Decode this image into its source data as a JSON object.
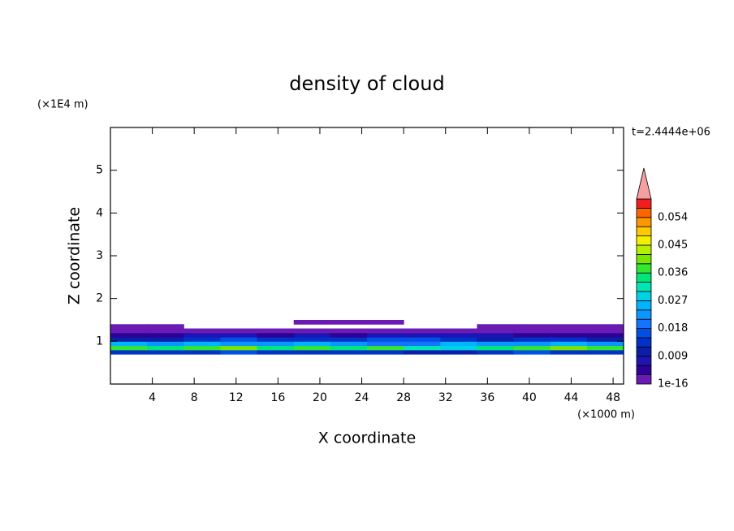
{
  "chart_data": {
    "type": "contour",
    "title": "density of cloud",
    "xlabel": "X coordinate",
    "x_unit": "(×1000 m)",
    "ylabel": "Z coordinate",
    "y_unit": "(×1E4 m)",
    "time_label": "t=2.4444e+06",
    "xlim": [
      0,
      49
    ],
    "xticks": [
      4,
      8,
      12,
      16,
      20,
      24,
      28,
      32,
      36,
      40,
      44,
      48
    ],
    "ylim": [
      0,
      6
    ],
    "yticks": [
      1,
      2,
      3,
      4,
      5
    ],
    "x_edges": [
      0,
      3.5,
      7,
      10.5,
      14,
      17.5,
      21,
      24.5,
      28,
      31.5,
      35,
      38.5,
      42,
      45.5,
      49
    ],
    "z_edges": [
      0.7,
      0.8,
      0.9,
      1.0,
      1.1,
      1.2,
      1.3,
      1.4,
      1.5
    ],
    "values": [
      [
        0.012,
        0.014,
        0.013,
        0.015,
        0.012,
        0.014,
        0.013,
        0.012,
        0.011,
        0.01,
        0.013,
        0.015,
        0.014,
        0.013
      ],
      [
        0.036,
        0.034,
        0.038,
        0.04,
        0.035,
        0.037,
        0.033,
        0.036,
        0.03,
        0.028,
        0.034,
        0.038,
        0.04,
        0.037
      ],
      [
        0.024,
        0.022,
        0.026,
        0.023,
        0.021,
        0.024,
        0.022,
        0.02,
        0.018,
        0.026,
        0.021,
        0.023,
        0.025,
        0.022
      ],
      [
        0.01,
        0.011,
        0.014,
        0.015,
        0.013,
        0.012,
        0.014,
        0.016,
        0.015,
        0.012,
        0.011,
        0.013,
        0.012,
        0.01
      ],
      [
        0.005,
        0.004,
        0.006,
        0.007,
        0.005,
        0.006,
        0.005,
        0.006,
        0.008,
        0.007,
        0.006,
        0.005,
        0.004,
        0.005
      ],
      [
        0.002,
        0.002,
        0.001,
        0.001,
        0.002,
        0.002,
        0.001,
        0.002,
        0.002,
        0.002,
        0.002,
        0.002,
        0.002,
        0.002
      ],
      [
        0.001,
        0.001,
        null,
        null,
        null,
        null,
        null,
        null,
        null,
        null,
        0.001,
        0.001,
        0.001,
        0.001
      ],
      [
        null,
        null,
        null,
        null,
        null,
        0.001,
        0.001,
        0.001,
        null,
        null,
        null,
        null,
        null,
        null
      ]
    ],
    "colorbar": {
      "levels": [
        1e-16,
        0.003,
        0.006,
        0.009,
        0.012,
        0.015,
        0.018,
        0.021,
        0.024,
        0.027,
        0.03,
        0.033,
        0.036,
        0.039,
        0.042,
        0.045,
        0.048,
        0.051,
        0.054,
        0.057,
        0.06
      ],
      "colors": [
        "#6a1bb4",
        "#2d0096",
        "#1e14b4",
        "#0a1eaa",
        "#0032c8",
        "#0050e6",
        "#1473ff",
        "#0a96ff",
        "#00b4ff",
        "#00d2e6",
        "#00e6b4",
        "#00e678",
        "#32e632",
        "#78e600",
        "#b4f000",
        "#f0f000",
        "#ffc800",
        "#ff9600",
        "#ff6400",
        "#f01e1e"
      ],
      "extend_color": "#f4a0a0",
      "ticks": [
        1e-16,
        0.009,
        0.018,
        0.027,
        0.036,
        0.045,
        0.054
      ]
    }
  }
}
